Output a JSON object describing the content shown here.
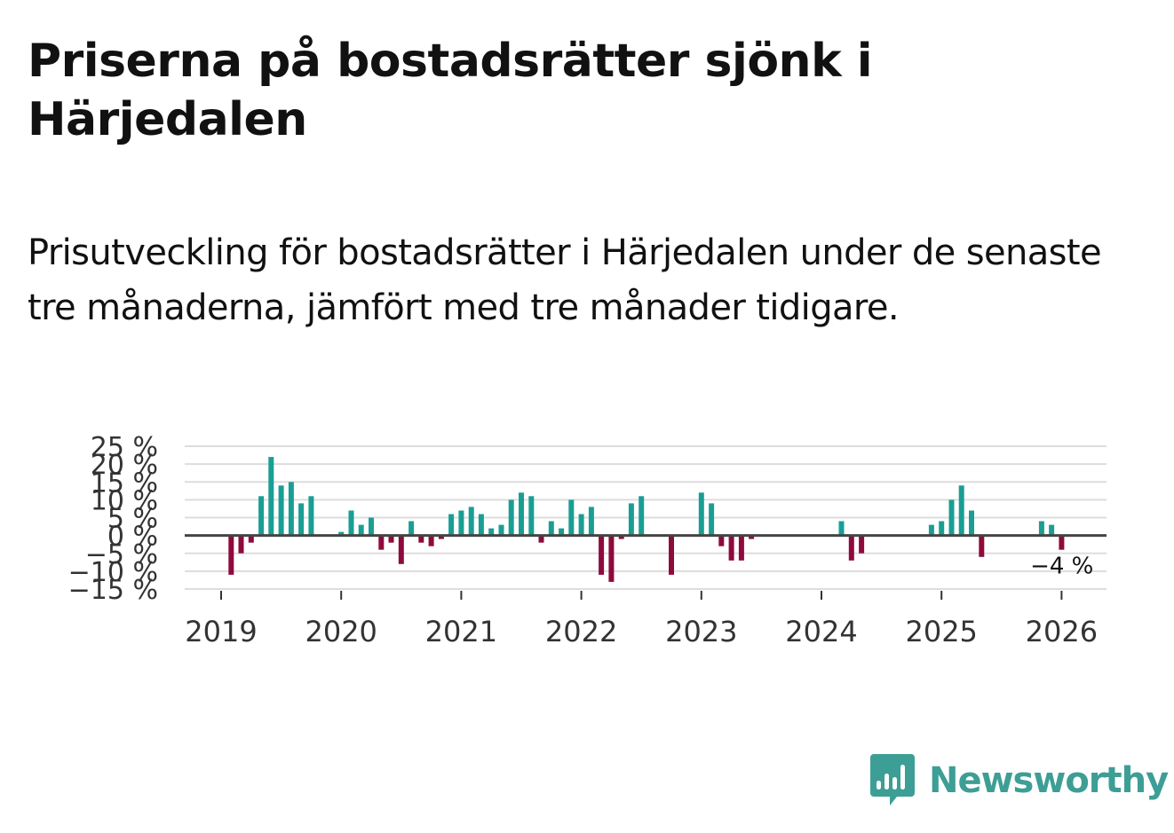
{
  "title": "Priserna på bostadsrätter sjönk i Härjedalen",
  "subtitle": "Prisutveckling för bostadsrätter i Härjedalen under de senaste tre månaderna, jämfört med tre månader tidigare.",
  "brand": {
    "name": "Newsworthy",
    "color": "#3d9e95"
  },
  "colors": {
    "positive": "#1a9e94",
    "negative": "#8f0a3c",
    "grid": "#dddddd",
    "zero_line": "#444444"
  },
  "chart_data": {
    "type": "bar",
    "title": "Priserna på bostadsrätter sjönk i Härjedalen",
    "xlabel": "",
    "ylabel": "",
    "ylim": [
      -15,
      25
    ],
    "y_ticks": [
      25,
      20,
      15,
      10,
      5,
      0,
      -5,
      -10,
      -15
    ],
    "y_tick_labels": [
      "25 %",
      "20 %",
      "15 %",
      "10 %",
      "5 %",
      "0 %",
      "−5 %",
      "−10 %",
      "−15 %"
    ],
    "x_ticks": [
      "2019",
      "2020",
      "2021",
      "2022",
      "2023",
      "2024",
      "2025",
      "2026"
    ],
    "last_value_label": "−4 %",
    "series": [
      {
        "name": "Prisutveckling",
        "points": [
          {
            "date": "2019-02",
            "value": -11
          },
          {
            "date": "2019-03",
            "value": -5
          },
          {
            "date": "2019-04",
            "value": -2
          },
          {
            "date": "2019-05",
            "value": 11
          },
          {
            "date": "2019-06",
            "value": 22
          },
          {
            "date": "2019-07",
            "value": 14
          },
          {
            "date": "2019-08",
            "value": 15
          },
          {
            "date": "2019-09",
            "value": 9
          },
          {
            "date": "2019-10",
            "value": 11
          },
          {
            "date": "2020-01",
            "value": 1
          },
          {
            "date": "2020-02",
            "value": 7
          },
          {
            "date": "2020-03",
            "value": 3
          },
          {
            "date": "2020-04",
            "value": 5
          },
          {
            "date": "2020-05",
            "value": -4
          },
          {
            "date": "2020-06",
            "value": -2
          },
          {
            "date": "2020-07",
            "value": -8
          },
          {
            "date": "2020-08",
            "value": 4
          },
          {
            "date": "2020-09",
            "value": -2
          },
          {
            "date": "2020-10",
            "value": -3
          },
          {
            "date": "2020-11",
            "value": -1
          },
          {
            "date": "2020-12",
            "value": 6
          },
          {
            "date": "2021-01",
            "value": 7
          },
          {
            "date": "2021-02",
            "value": 8
          },
          {
            "date": "2021-03",
            "value": 6
          },
          {
            "date": "2021-04",
            "value": 2
          },
          {
            "date": "2021-05",
            "value": 3
          },
          {
            "date": "2021-06",
            "value": 10
          },
          {
            "date": "2021-07",
            "value": 12
          },
          {
            "date": "2021-08",
            "value": 11
          },
          {
            "date": "2021-09",
            "value": -2
          },
          {
            "date": "2021-10",
            "value": 4
          },
          {
            "date": "2021-11",
            "value": 2
          },
          {
            "date": "2021-12",
            "value": 10
          },
          {
            "date": "2022-01",
            "value": 6
          },
          {
            "date": "2022-02",
            "value": 8
          },
          {
            "date": "2022-03",
            "value": -11
          },
          {
            "date": "2022-04",
            "value": -13
          },
          {
            "date": "2022-05",
            "value": -1
          },
          {
            "date": "2022-06",
            "value": 9
          },
          {
            "date": "2022-07",
            "value": 11
          },
          {
            "date": "2022-10",
            "value": -11
          },
          {
            "date": "2023-01",
            "value": 12
          },
          {
            "date": "2023-02",
            "value": 9
          },
          {
            "date": "2023-03",
            "value": -3
          },
          {
            "date": "2023-04",
            "value": -7
          },
          {
            "date": "2023-05",
            "value": -7
          },
          {
            "date": "2023-06",
            "value": -1
          },
          {
            "date": "2024-03",
            "value": 4
          },
          {
            "date": "2024-04",
            "value": -7
          },
          {
            "date": "2024-05",
            "value": -5
          },
          {
            "date": "2024-12",
            "value": 3
          },
          {
            "date": "2025-01",
            "value": 4
          },
          {
            "date": "2025-02",
            "value": 10
          },
          {
            "date": "2025-03",
            "value": 14
          },
          {
            "date": "2025-04",
            "value": 7
          },
          {
            "date": "2025-05",
            "value": -6
          },
          {
            "date": "2025-11",
            "value": 4
          },
          {
            "date": "2025-12",
            "value": 3
          },
          {
            "date": "2026-01",
            "value": -4
          }
        ]
      }
    ]
  }
}
